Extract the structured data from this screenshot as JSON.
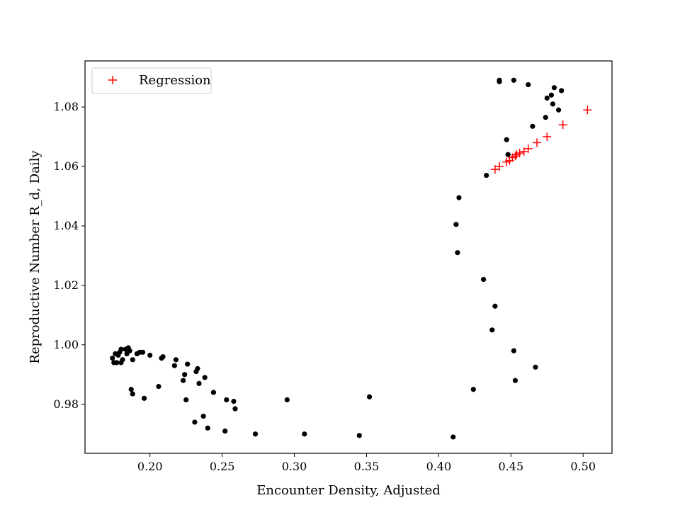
{
  "chart_data": {
    "type": "scatter",
    "xlabel": "Encounter Density, Adjusted",
    "ylabel": "Reproductive Number R_d, Daily",
    "xlim": [
      0.155,
      0.52
    ],
    "ylim": [
      0.9635,
      1.0955
    ],
    "xticks": [
      0.2,
      0.25,
      0.3,
      0.35,
      0.4,
      0.45,
      0.5
    ],
    "xtick_labels": [
      "0.20",
      "0.25",
      "0.30",
      "0.35",
      "0.40",
      "0.45",
      "0.50"
    ],
    "yticks": [
      0.98,
      1.0,
      1.02,
      1.04,
      1.06,
      1.08
    ],
    "ytick_labels": [
      "0.98",
      "1.00",
      "1.02",
      "1.04",
      "1.06",
      "1.08"
    ],
    "grid": false,
    "legend": {
      "placement": "top-left",
      "entries": [
        {
          "label": "Regression",
          "marker": "plus",
          "color": "#ff0000"
        }
      ]
    },
    "series": [
      {
        "marker": "circle",
        "color": "#000000",
        "points": [
          [
            0.174,
            0.9955
          ],
          [
            0.175,
            0.994
          ],
          [
            0.176,
            0.997
          ],
          [
            0.177,
            0.994
          ],
          [
            0.178,
            0.9965
          ],
          [
            0.179,
            0.9975
          ],
          [
            0.18,
            0.9985
          ],
          [
            0.18,
            0.994
          ],
          [
            0.181,
            0.995
          ],
          [
            0.183,
            0.9985
          ],
          [
            0.184,
            0.997
          ],
          [
            0.185,
            0.999
          ],
          [
            0.186,
            0.998
          ],
          [
            0.187,
            0.985
          ],
          [
            0.188,
            0.9835
          ],
          [
            0.188,
            0.995
          ],
          [
            0.191,
            0.997
          ],
          [
            0.193,
            0.9975
          ],
          [
            0.195,
            0.9975
          ],
          [
            0.196,
            0.982
          ],
          [
            0.2,
            0.9965
          ],
          [
            0.206,
            0.986
          ],
          [
            0.208,
            0.9955
          ],
          [
            0.209,
            0.996
          ],
          [
            0.217,
            0.993
          ],
          [
            0.218,
            0.995
          ],
          [
            0.223,
            0.988
          ],
          [
            0.224,
            0.99
          ],
          [
            0.225,
            0.9815
          ],
          [
            0.226,
            0.9935
          ],
          [
            0.231,
            0.974
          ],
          [
            0.232,
            0.991
          ],
          [
            0.233,
            0.992
          ],
          [
            0.234,
            0.987
          ],
          [
            0.237,
            0.976
          ],
          [
            0.238,
            0.989
          ],
          [
            0.24,
            0.972
          ],
          [
            0.244,
            0.984
          ],
          [
            0.252,
            0.971
          ],
          [
            0.253,
            0.9815
          ],
          [
            0.258,
            0.981
          ],
          [
            0.259,
            0.9785
          ],
          [
            0.273,
            0.97
          ],
          [
            0.295,
            0.9815
          ],
          [
            0.307,
            0.97
          ],
          [
            0.345,
            0.9695
          ],
          [
            0.352,
            0.9825
          ],
          [
            0.41,
            0.969
          ],
          [
            0.412,
            1.0405
          ],
          [
            0.413,
            1.031
          ],
          [
            0.414,
            1.0495
          ],
          [
            0.424,
            0.985
          ],
          [
            0.431,
            1.022
          ],
          [
            0.433,
            1.057
          ],
          [
            0.437,
            1.005
          ],
          [
            0.439,
            1.013
          ],
          [
            0.442,
            1.089
          ],
          [
            0.442,
            1.0885
          ],
          [
            0.447,
            1.069
          ],
          [
            0.448,
            1.064
          ],
          [
            0.452,
            1.089
          ],
          [
            0.452,
            0.998
          ],
          [
            0.453,
            0.988
          ],
          [
            0.462,
            1.0875
          ],
          [
            0.465,
            1.0735
          ],
          [
            0.467,
            0.9925
          ],
          [
            0.474,
            1.0765
          ],
          [
            0.475,
            1.083
          ],
          [
            0.478,
            1.084
          ],
          [
            0.479,
            1.081
          ],
          [
            0.48,
            1.0865
          ],
          [
            0.483,
            1.079
          ],
          [
            0.485,
            1.0855
          ]
        ]
      },
      {
        "name": "Regression",
        "marker": "plus",
        "color": "#ff0000",
        "points": [
          [
            0.439,
            1.059
          ],
          [
            0.442,
            1.06
          ],
          [
            0.447,
            1.0615
          ],
          [
            0.449,
            1.062
          ],
          [
            0.451,
            1.063
          ],
          [
            0.453,
            1.0635
          ],
          [
            0.454,
            1.064
          ],
          [
            0.456,
            1.0645
          ],
          [
            0.459,
            1.065
          ],
          [
            0.462,
            1.066
          ],
          [
            0.468,
            1.068
          ],
          [
            0.475,
            1.07
          ],
          [
            0.486,
            1.074
          ],
          [
            0.503,
            1.079
          ]
        ]
      }
    ]
  }
}
